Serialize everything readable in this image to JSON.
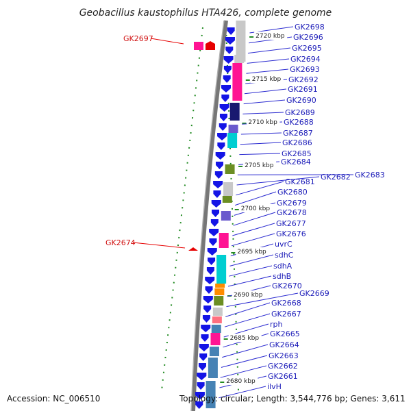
{
  "title": "Geobacillus kaustophilus HTA426, complete genome",
  "accession": "Accession: NC_006510",
  "topology": "Topology: circular; Length: 3,544,776 bp; Genes: 3,611",
  "colors": {
    "forward_arrow": "#1414e6",
    "reverse_arrow": "#e60000",
    "backbone": "#777777",
    "tick_green": "#228b22",
    "label_blue": "#1a1ab8",
    "label_red": "#d01010",
    "leader": "#2a2ad0"
  },
  "kbp_marks": [
    "2720 kbp",
    "2715 kbp",
    "2710 kbp",
    "2705 kbp",
    "2700 kbp",
    "2695 kbp",
    "2690 kbp",
    "2685 kbp",
    "2680 kbp"
  ],
  "genes_right": [
    "GK2698",
    "GK2696",
    "GK2695",
    "GK2694",
    "GK2693",
    "GK2692",
    "GK2691",
    "GK2690",
    "GK2689",
    "GK2688",
    "GK2687",
    "GK2686",
    "GK2685",
    "GK2684",
    "GK2683",
    "GK2682",
    "GK2681",
    "GK2680",
    "GK2679",
    "GK2678",
    "GK2677",
    "GK2676",
    "uvrC",
    "sdhC",
    "sdhA",
    "sdhB",
    "GK2670",
    "GK2669",
    "GK2668",
    "GK2667",
    "rph",
    "GK2665",
    "GK2664",
    "GK2663",
    "GK2662",
    "GK2661",
    "ilvH"
  ],
  "genes_left": [
    "GK2697",
    "GK2674"
  ],
  "cog_colors": [
    "#c8c8c8",
    "#ff1493",
    "#191970",
    "#00ced1",
    "#6b8e23",
    "#6a5acd",
    "#4682b4",
    "#ff8c00",
    "#ff6f7f"
  ]
}
